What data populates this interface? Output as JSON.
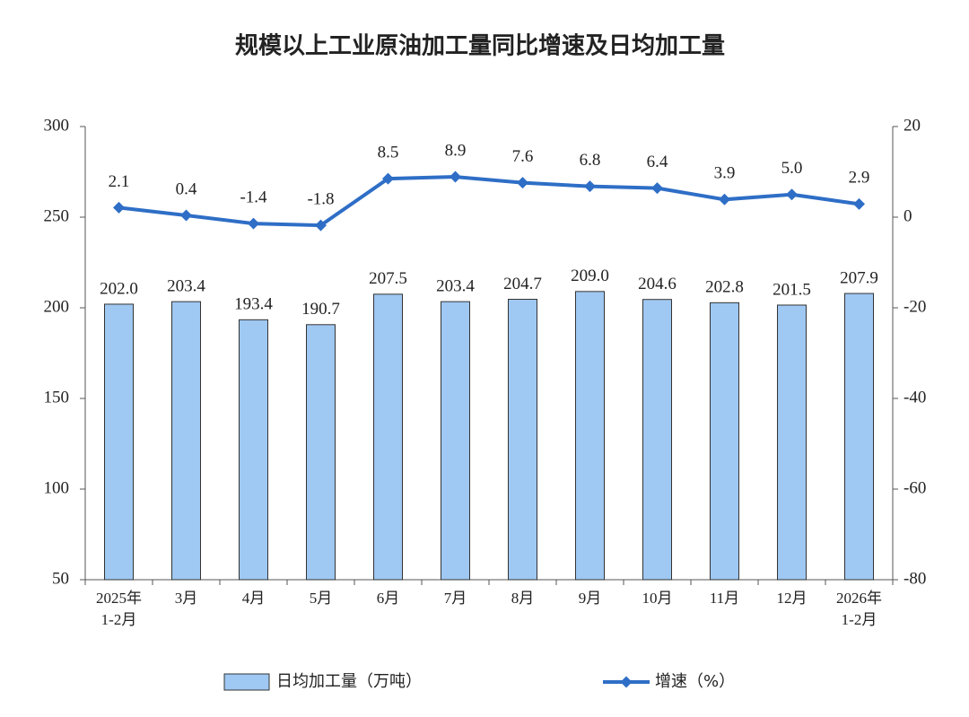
{
  "chart_data": {
    "type": "bar-line",
    "title": "规模以上工业原油加工量同比增速及日均加工量",
    "categories": [
      "2025年\n1-2月",
      "3月",
      "4月",
      "5月",
      "6月",
      "7月",
      "8月",
      "9月",
      "10月",
      "11月",
      "12月",
      "2026年\n1-2月"
    ],
    "series": [
      {
        "name": "日均加工量（万吨）",
        "type": "bar",
        "color": "#9fc8f2",
        "edge": "#333333",
        "values": [
          202.0,
          203.4,
          193.4,
          190.7,
          207.5,
          203.4,
          204.7,
          209.0,
          204.6,
          202.8,
          201.5,
          207.9
        ],
        "value_labels": [
          "202.0",
          "203.4",
          "193.4",
          "190.7",
          "207.5",
          "203.4",
          "204.7",
          "209.0",
          "204.6",
          "202.8",
          "201.5",
          "207.9"
        ]
      },
      {
        "name": "增速（%）",
        "type": "line",
        "axis": "y2",
        "color": "#2e6ec6",
        "values": [
          2.1,
          0.4,
          -1.4,
          -1.8,
          8.5,
          8.9,
          7.6,
          6.8,
          6.4,
          3.9,
          5.0,
          2.9
        ],
        "value_labels": [
          "2.1",
          "0.4",
          "-1.4",
          "-1.8",
          "8.5",
          "8.9",
          "7.6",
          "6.8",
          "6.4",
          "3.9",
          "5.0",
          "2.9"
        ]
      }
    ],
    "ylim": [
      50,
      300
    ],
    "yticks": [
      50,
      100,
      150,
      200,
      250,
      300
    ],
    "y2lim": [
      -80,
      20
    ],
    "y2ticks": [
      -80,
      -60,
      -40,
      -20,
      0,
      20
    ]
  }
}
